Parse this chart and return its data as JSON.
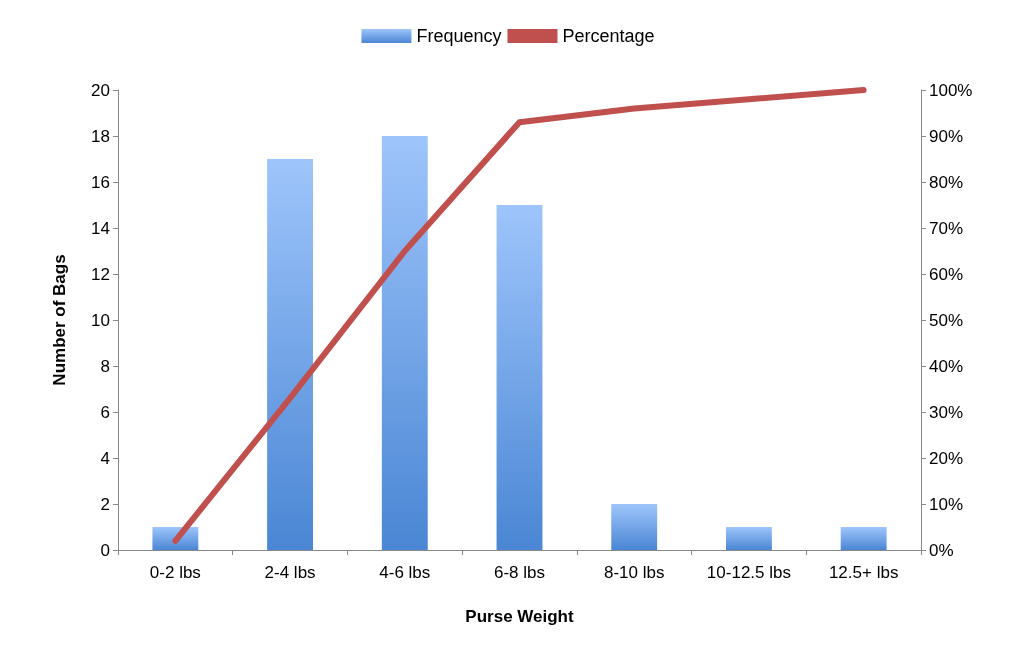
{
  "chart_data": {
    "type": "bar",
    "xlabel": "Purse Weight",
    "ylabel": "Number of Bags",
    "categories": [
      "0-2 lbs",
      "2-4 lbs",
      "4-6 lbs",
      "6-8 lbs",
      "8-10 lbs",
      "10-12.5 lbs",
      "12.5+ lbs"
    ],
    "series": [
      {
        "name": "Frequency",
        "color": "#4a86d4",
        "values": [
          1,
          17,
          18,
          15,
          2,
          1,
          1
        ]
      },
      {
        "name": "Percentage",
        "type": "line",
        "axis": "y2",
        "color": "#c0504d",
        "marker": "none",
        "line_style": "solid",
        "values": [
          2,
          33,
          65,
          93,
          96,
          98,
          100
        ]
      }
    ],
    "ylim": [
      0,
      20
    ],
    "yticks": [
      0,
      2,
      4,
      6,
      8,
      10,
      12,
      14,
      16,
      18,
      20
    ],
    "y2lim": [
      0,
      100
    ],
    "y2ticks": [
      {
        "value": 0,
        "label": "0%"
      },
      {
        "value": 10,
        "label": "10%"
      },
      {
        "value": 20,
        "label": "20%"
      },
      {
        "value": 30,
        "label": "30%"
      },
      {
        "value": 40,
        "label": "40%"
      },
      {
        "value": 50,
        "label": "50%"
      },
      {
        "value": 60,
        "label": "60%"
      },
      {
        "value": 70,
        "label": "70%"
      },
      {
        "value": 80,
        "label": "80%"
      },
      {
        "value": 90,
        "label": "90%"
      },
      {
        "value": 100,
        "label": "100%"
      }
    ],
    "grid": false,
    "legend": "top"
  }
}
